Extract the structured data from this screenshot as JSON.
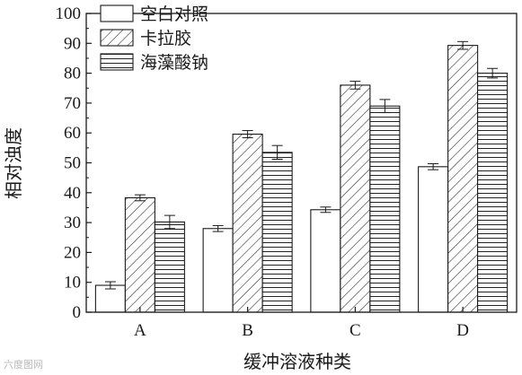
{
  "chart_data": {
    "type": "bar",
    "xlabel": "缓冲溶液种类",
    "ylabel": "相对浊度",
    "categories": [
      "A",
      "B",
      "C",
      "D"
    ],
    "ylim": [
      0,
      100
    ],
    "yticks": [
      0,
      10,
      20,
      30,
      40,
      50,
      60,
      70,
      80,
      90,
      100
    ],
    "legend_position": "top-left",
    "series": [
      {
        "name": "空白对照",
        "values": [
          9,
          28,
          34.3,
          48.7
        ],
        "errors": [
          1.2,
          1.0,
          0.9,
          1.0
        ],
        "pattern": "none"
      },
      {
        "name": "卡拉胶",
        "values": [
          38.3,
          59.6,
          76,
          89.3
        ],
        "errors": [
          1.0,
          1.2,
          1.3,
          1.3
        ],
        "pattern": "diagonal"
      },
      {
        "name": "海藻酸钠",
        "values": [
          30.2,
          53.5,
          69,
          80
        ],
        "errors": [
          2.2,
          2.3,
          2.2,
          1.6
        ],
        "pattern": "horizontal"
      }
    ]
  },
  "watermark_text": "六度图网"
}
